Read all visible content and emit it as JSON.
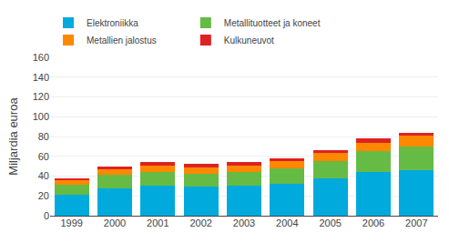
{
  "chart_data": {
    "type": "bar",
    "stacked": true,
    "categories": [
      "1999",
      "2000",
      "2001",
      "2002",
      "2003",
      "2004",
      "2005",
      "2006",
      "2007"
    ],
    "series": [
      {
        "name": "Elektroniikka",
        "color": "#00AADD",
        "values": [
          21,
          28,
          30,
          29,
          30,
          32,
          38,
          44,
          46
        ]
      },
      {
        "name": "Metallituotteet ja koneet",
        "color": "#66BB44",
        "values": [
          10,
          13,
          14,
          13,
          14,
          16,
          17,
          21,
          24
        ]
      },
      {
        "name": "Metallien jalostus",
        "color": "#FF8800",
        "values": [
          5,
          6,
          7,
          7,
          7,
          7,
          8,
          9,
          11
        ]
      },
      {
        "name": "Kulkuneuvot",
        "color": "#DD2222",
        "values": [
          2,
          3,
          3,
          3,
          3,
          3,
          3,
          4,
          3
        ]
      }
    ],
    "ylabel": "Miljardia euroa",
    "ylim": [
      0,
      160
    ],
    "yticks": [
      0,
      20,
      40,
      60,
      80,
      100,
      120,
      140,
      160
    ],
    "grid": true,
    "legend": "upper left"
  }
}
